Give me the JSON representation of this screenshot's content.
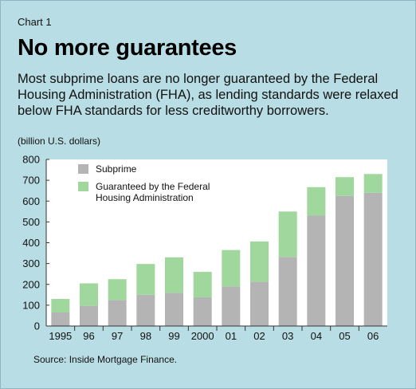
{
  "header": {
    "kicker": "Chart 1",
    "title": "No more guarantees",
    "subtitle": "Most subprime loans are no longer guaranteed by the Federal Housing Administration (FHA), as lending standards were relaxed below FHA standards for less creditworthy borrowers.",
    "unit": "(billion U.S. dollars)"
  },
  "source": "Source: Inside Mortgage Finance.",
  "colors": {
    "subprime": "#b4b4b4",
    "fha": "#9fd79c",
    "plot_bg": "#ffffff",
    "background": "#b8dde4"
  },
  "legend": {
    "items": [
      {
        "label_lines": [
          "Subprime"
        ],
        "color": "#b4b4b4"
      },
      {
        "label_lines": [
          "Guaranteed by the Federal",
          "Housing Administration"
        ],
        "color": "#9fd79c"
      }
    ]
  },
  "chart_data": {
    "type": "bar",
    "stacked": true,
    "categories": [
      "1995",
      "96",
      "97",
      "98",
      "99",
      "2000",
      "01",
      "02",
      "03",
      "04",
      "05",
      "06"
    ],
    "series": [
      {
        "name": "Subprime",
        "values": [
          65,
          97,
          125,
          150,
          160,
          138,
          190,
          213,
          332,
          530,
          625,
          640
        ]
      },
      {
        "name": "Guaranteed by the Federal Housing Administration",
        "values": [
          65,
          108,
          100,
          148,
          170,
          122,
          175,
          193,
          218,
          137,
          90,
          90
        ]
      }
    ],
    "ylim": [
      0,
      800
    ],
    "yticks": [
      0,
      100,
      200,
      300,
      400,
      500,
      600,
      700,
      800
    ],
    "grid": false,
    "legend_position": "top-left"
  }
}
